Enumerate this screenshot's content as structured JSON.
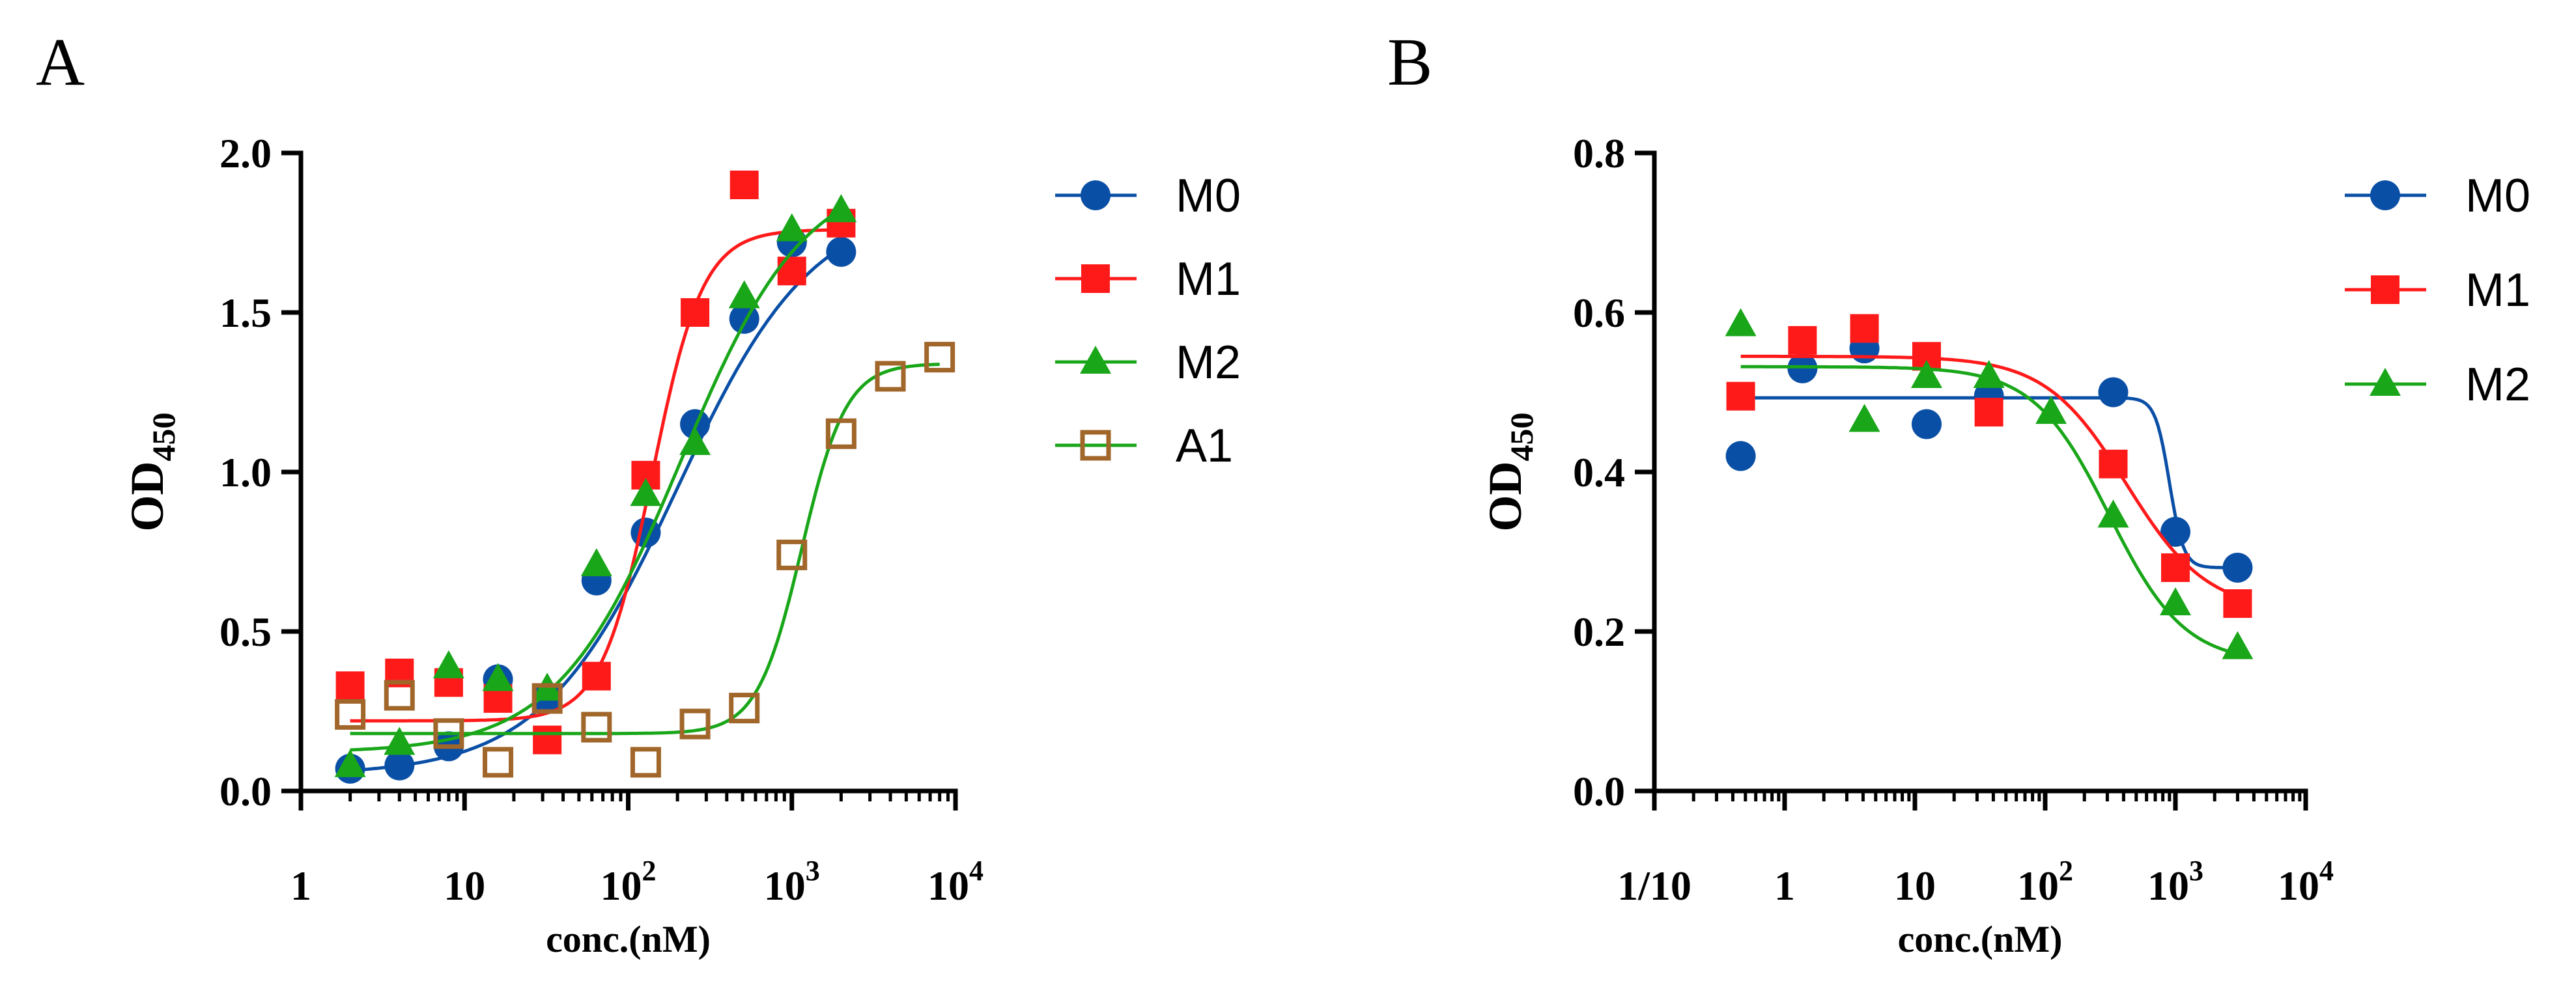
{
  "chart_data": [
    {
      "panel_label": "A",
      "type": "scatter",
      "xscale": "log",
      "xlim": [
        1,
        10000
      ],
      "ylim": [
        0,
        2.0
      ],
      "xlabel": "conc.(nM)",
      "ylabel": {
        "main": "OD",
        "sub": "450"
      },
      "yticks": [
        {
          "value": 0.0,
          "label": "0.0"
        },
        {
          "value": 0.5,
          "label": "0.5"
        },
        {
          "value": 1.0,
          "label": "1.0"
        },
        {
          "value": 1.5,
          "label": "1.5"
        },
        {
          "value": 2.0,
          "label": "2.0"
        }
      ],
      "xticks": [
        {
          "value": 1,
          "base": "1",
          "exp": ""
        },
        {
          "value": 10,
          "base": "10",
          "exp": ""
        },
        {
          "value": 100,
          "base": "10",
          "exp": "2"
        },
        {
          "value": 1000,
          "base": "10",
          "exp": "3"
        },
        {
          "value": 10000,
          "base": "10",
          "exp": "4"
        }
      ],
      "legend_position": "right",
      "series": [
        {
          "name": "M0",
          "color": "#0a4fa6",
          "marker": "circle",
          "x": [
            2,
            4,
            8,
            16,
            32,
            64,
            128,
            256,
            512,
            1000,
            2000
          ],
          "y": [
            0.07,
            0.08,
            0.14,
            0.35,
            0.29,
            0.66,
            0.81,
            1.15,
            1.48,
            1.72,
            1.69
          ],
          "fit": {
            "bottom": 0.05,
            "top": 1.85,
            "ec50": 200,
            "hill": 1.05
          }
        },
        {
          "name": "M1",
          "color": "#ff1a1a",
          "marker": "square",
          "x": [
            2,
            4,
            8,
            16,
            32,
            64,
            128,
            256,
            512,
            1000,
            2000
          ],
          "y": [
            0.33,
            0.37,
            0.34,
            0.29,
            0.16,
            0.36,
            0.99,
            1.5,
            1.9,
            1.63,
            1.78
          ],
          "fit": {
            "bottom": 0.22,
            "top": 1.76,
            "ec50": 140,
            "hill": 2.8
          }
        },
        {
          "name": "M2",
          "color": "#19a619",
          "marker": "triangle",
          "x": [
            2,
            4,
            8,
            16,
            32,
            64,
            128,
            256,
            512,
            1000,
            2000
          ],
          "y": [
            0.08,
            0.15,
            0.39,
            0.35,
            0.32,
            0.71,
            0.93,
            1.09,
            1.55,
            1.76,
            1.82
          ],
          "fit": {
            "bottom": 0.12,
            "top": 1.95,
            "ec50": 210,
            "hill": 1.15
          }
        },
        {
          "name": "A1",
          "color": "#a0662a",
          "marker": "open-square",
          "fit_color": "#19a619",
          "x": [
            2,
            4,
            8,
            16,
            32,
            64,
            128,
            256,
            512,
            1000,
            2000,
            4000,
            8000
          ],
          "y": [
            0.24,
            0.3,
            0.18,
            0.09,
            0.29,
            0.2,
            0.09,
            0.21,
            0.26,
            0.74,
            1.12,
            1.3,
            1.36
          ],
          "fit": {
            "bottom": 0.18,
            "top": 1.34,
            "ec50": 1150,
            "hill": 3.2
          }
        }
      ]
    },
    {
      "panel_label": "B",
      "type": "scatter",
      "xscale": "log",
      "xlim": [
        0.1,
        10000
      ],
      "ylim": [
        0,
        0.8
      ],
      "xlabel": "conc.(nM)",
      "ylabel": {
        "main": "OD",
        "sub": "450"
      },
      "yticks": [
        {
          "value": 0.0,
          "label": "0.0"
        },
        {
          "value": 0.2,
          "label": "0.2"
        },
        {
          "value": 0.4,
          "label": "0.4"
        },
        {
          "value": 0.6,
          "label": "0.6"
        },
        {
          "value": 0.8,
          "label": "0.8"
        }
      ],
      "xticks": [
        {
          "value": 0.1,
          "base": "1/10",
          "exp": ""
        },
        {
          "value": 1,
          "base": "1",
          "exp": ""
        },
        {
          "value": 10,
          "base": "10",
          "exp": ""
        },
        {
          "value": 100,
          "base": "10",
          "exp": "2"
        },
        {
          "value": 1000,
          "base": "10",
          "exp": "3"
        },
        {
          "value": 10000,
          "base": "10",
          "exp": "4"
        }
      ],
      "legend_position": "right",
      "series": [
        {
          "name": "M0",
          "color": "#0a4fa6",
          "marker": "circle",
          "x": [
            0.46,
            1.37,
            4.1,
            12.3,
            37,
            111,
            333,
            1000,
            3000
          ],
          "y": [
            0.42,
            0.53,
            0.555,
            0.46,
            0.495,
            null,
            0.5,
            0.325,
            0.28
          ],
          "fit": {
            "bottom": 0.28,
            "top": 0.493,
            "ec50": 900,
            "hill": -8
          }
        },
        {
          "name": "M1",
          "color": "#ff1a1a",
          "marker": "square",
          "x": [
            0.46,
            1.37,
            4.1,
            12.3,
            37,
            111,
            333,
            1000,
            3000
          ],
          "y": [
            0.495,
            0.565,
            0.58,
            0.545,
            0.475,
            null,
            0.41,
            0.28,
            0.235
          ],
          "fit": {
            "bottom": 0.225,
            "top": 0.545,
            "ec50": 420,
            "hill": -1.4
          }
        },
        {
          "name": "M2",
          "color": "#19a619",
          "marker": "triangle",
          "x": [
            0.46,
            1.37,
            4.1,
            12.3,
            37,
            111,
            333,
            1000,
            3000
          ],
          "y": [
            0.585,
            null,
            0.465,
            0.52,
            0.52,
            0.475,
            0.345,
            0.235,
            0.18
          ],
          "fit": {
            "bottom": 0.16,
            "top": 0.532,
            "ec50": 310,
            "hill": -1.5
          }
        }
      ]
    }
  ]
}
